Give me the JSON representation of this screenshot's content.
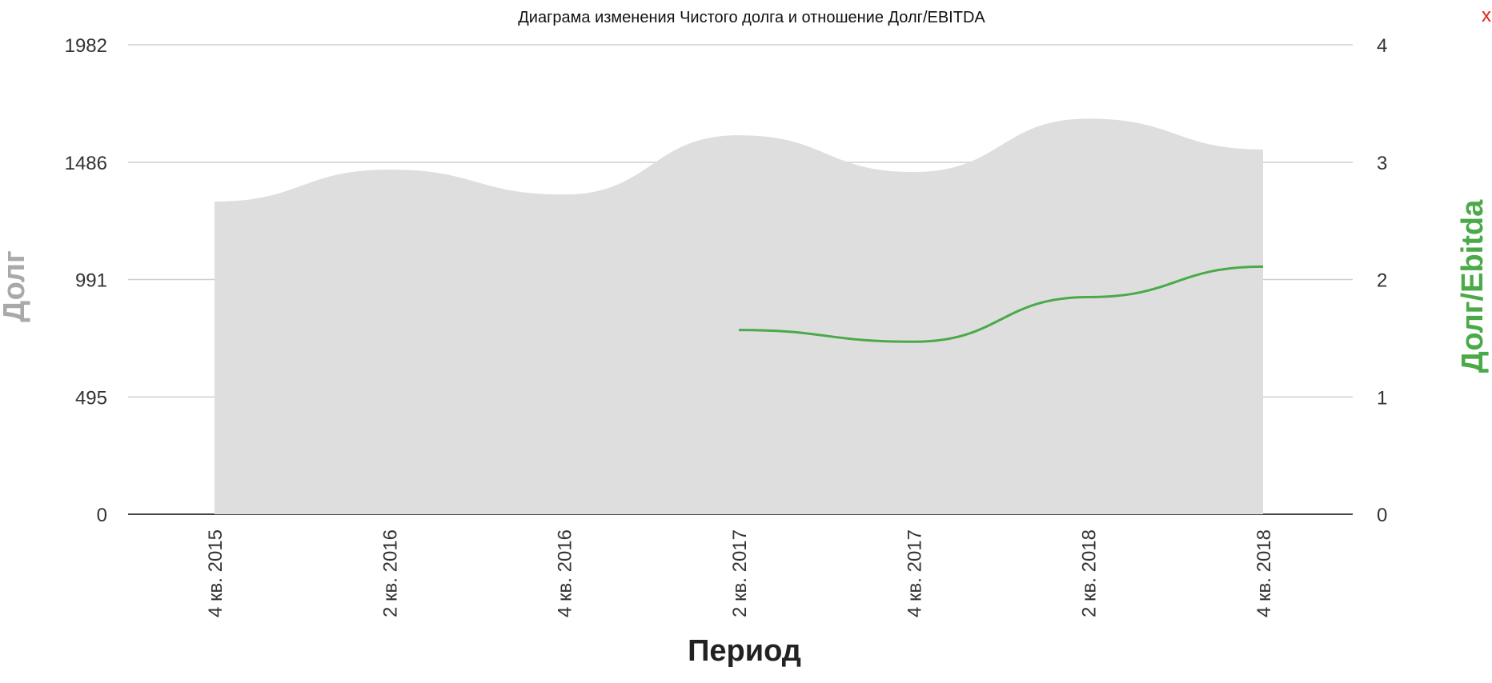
{
  "close_label": "x",
  "chart_data": {
    "type": "area",
    "title": "Диаграма изменения Чистого долга и отношение Долг/EBITDA",
    "xlabel": "Период",
    "ylabel_left": "Долг",
    "ylabel_right": "Долг/Ebitda",
    "categories": [
      "4 кв. 2015",
      "2 кв. 2016",
      "4 кв. 2016",
      "2 кв. 2017",
      "4 кв. 2017",
      "2 кв. 2018",
      "4 кв. 2018"
    ],
    "y_left": {
      "ticks": [
        0,
        495,
        991,
        1486,
        1982
      ],
      "ylim": [
        0,
        1982
      ]
    },
    "y_right": {
      "ticks": [
        0,
        1,
        2,
        3,
        4
      ],
      "ylim": [
        0,
        4
      ]
    },
    "grid": true,
    "series": [
      {
        "axis": "left",
        "kind": "area",
        "color": "#dedede",
        "values": [
          1320,
          1455,
          1350,
          1600,
          1445,
          1670,
          1540
        ]
      },
      {
        "axis": "right",
        "kind": "line",
        "color": "#4aaa48",
        "values": [
          null,
          null,
          null,
          1.57,
          1.47,
          1.85,
          2.11
        ]
      }
    ]
  }
}
